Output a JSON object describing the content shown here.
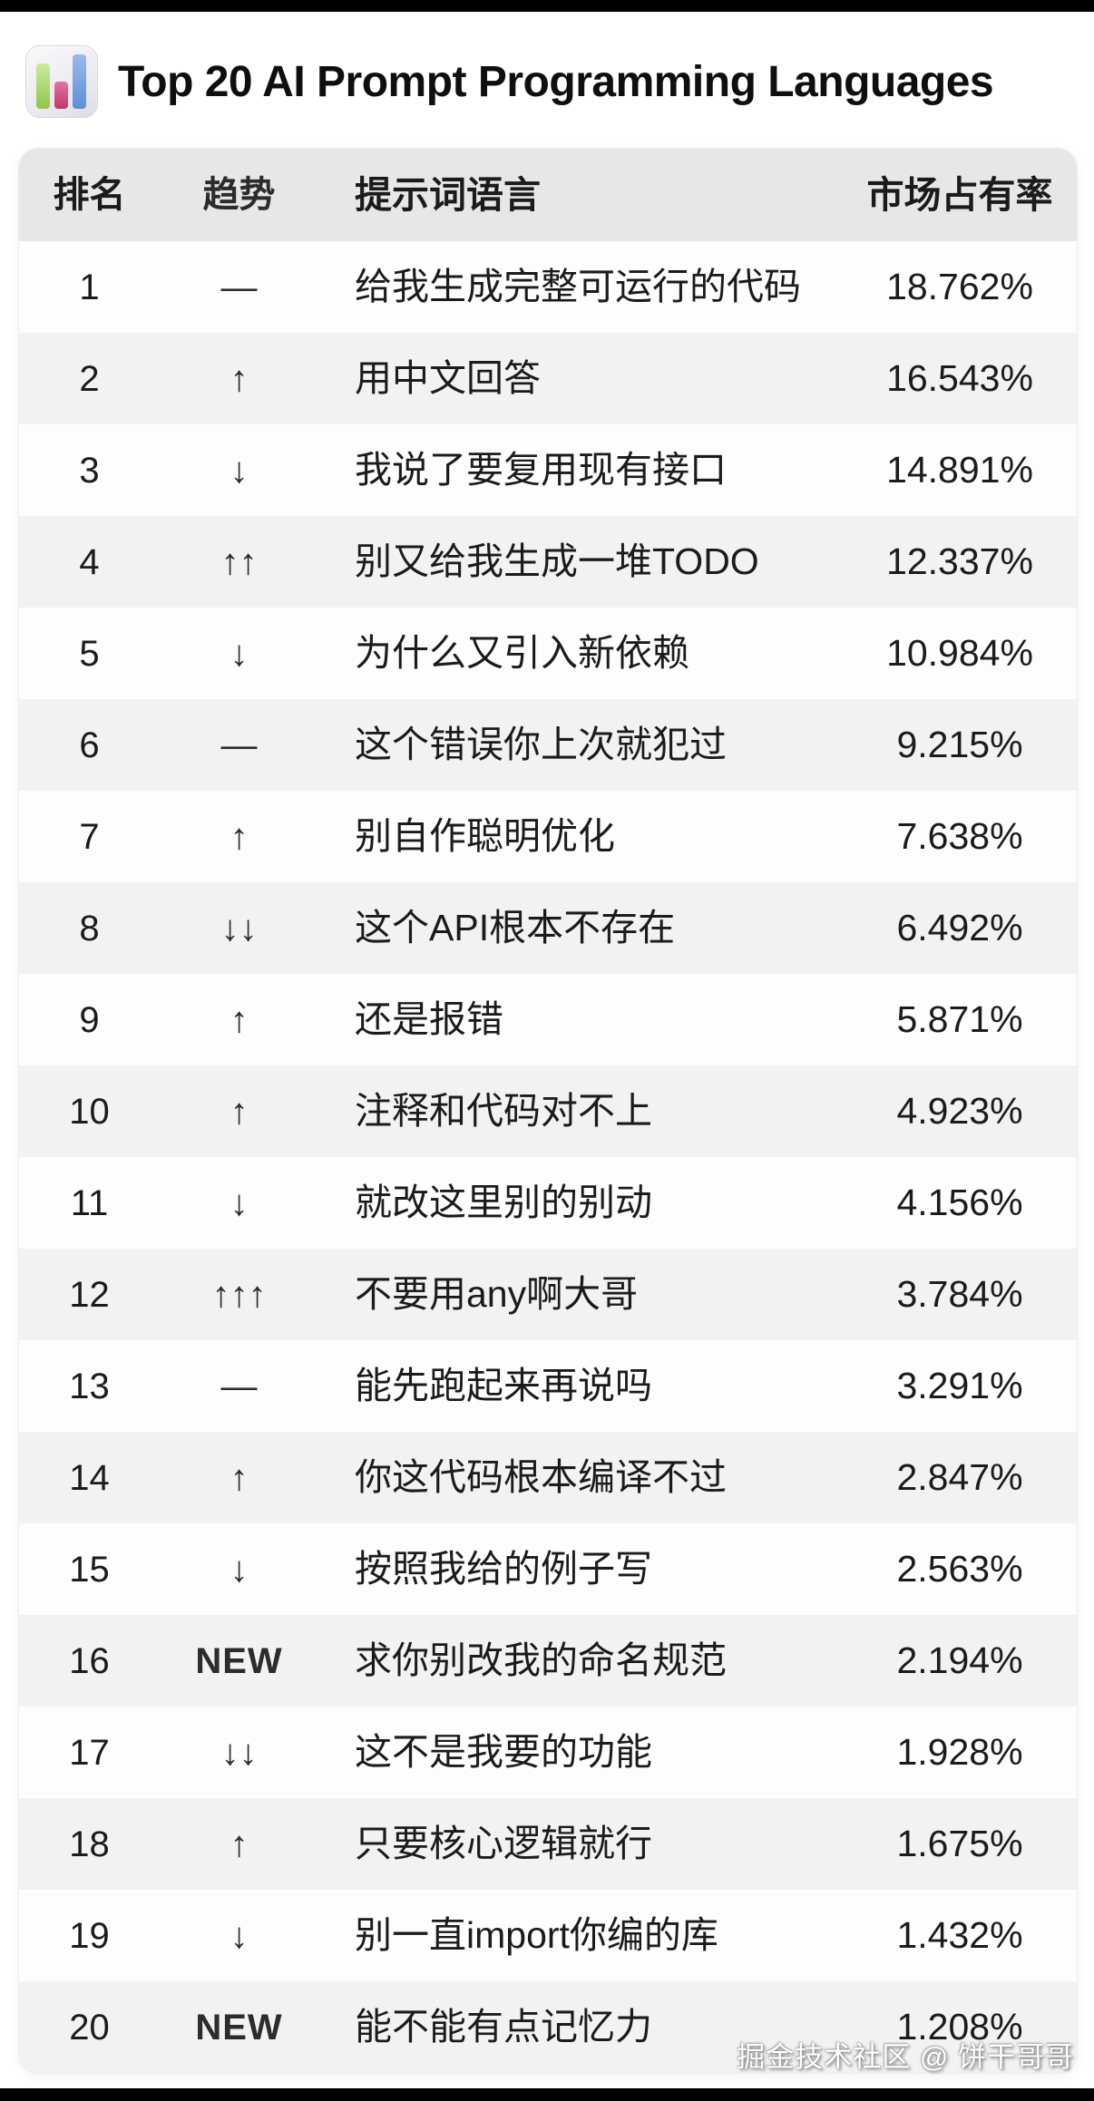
{
  "header": {
    "icon": "bar-chart-emoji",
    "title": "Top 20 AI Prompt Programming Languages"
  },
  "table": {
    "columns": [
      "排名",
      "趋势",
      "提示词语言",
      "市场占有率"
    ],
    "rows": [
      {
        "rank": "1",
        "trend": "—",
        "language": "给我生成完整可运行的代码",
        "share": "18.762%"
      },
      {
        "rank": "2",
        "trend": "↑",
        "language": "用中文回答",
        "share": "16.543%"
      },
      {
        "rank": "3",
        "trend": "↓",
        "language": "我说了要复用现有接口",
        "share": "14.891%"
      },
      {
        "rank": "4",
        "trend": "↑↑",
        "language": "别又给我生成一堆TODO",
        "share": "12.337%"
      },
      {
        "rank": "5",
        "trend": "↓",
        "language": "为什么又引入新依赖",
        "share": "10.984%"
      },
      {
        "rank": "6",
        "trend": "—",
        "language": "这个错误你上次就犯过",
        "share": "9.215%"
      },
      {
        "rank": "7",
        "trend": "↑",
        "language": "别自作聪明优化",
        "share": "7.638%"
      },
      {
        "rank": "8",
        "trend": "↓↓",
        "language": "这个API根本不存在",
        "share": "6.492%"
      },
      {
        "rank": "9",
        "trend": "↑",
        "language": "还是报错",
        "share": "5.871%"
      },
      {
        "rank": "10",
        "trend": "↑",
        "language": "注释和代码对不上",
        "share": "4.923%"
      },
      {
        "rank": "11",
        "trend": "↓",
        "language": "就改这里别的别动",
        "share": "4.156%"
      },
      {
        "rank": "12",
        "trend": "↑↑↑",
        "language": "不要用any啊大哥",
        "share": "3.784%"
      },
      {
        "rank": "13",
        "trend": "—",
        "language": "能先跑起来再说吗",
        "share": "3.291%"
      },
      {
        "rank": "14",
        "trend": "↑",
        "language": "你这代码根本编译不过",
        "share": "2.847%"
      },
      {
        "rank": "15",
        "trend": "↓",
        "language": "按照我给的例子写",
        "share": "2.563%"
      },
      {
        "rank": "16",
        "trend": "NEW",
        "language": "求你别改我的命名规范",
        "share": "2.194%"
      },
      {
        "rank": "17",
        "trend": "↓↓",
        "language": "这不是我要的功能",
        "share": "1.928%"
      },
      {
        "rank": "18",
        "trend": "↑",
        "language": "只要核心逻辑就行",
        "share": "1.675%"
      },
      {
        "rank": "19",
        "trend": "↓",
        "language": "别一直import你编的库",
        "share": "1.432%"
      },
      {
        "rank": "20",
        "trend": "NEW",
        "language": "能不能有点记忆力",
        "share": "1.208%"
      }
    ]
  },
  "watermark": "掘金技术社区 @ 饼干哥哥",
  "colors": {
    "header_bg": "#e7e7e8",
    "row_alt_bg": "#f2f2f3",
    "row_bg": "#fdfdfd",
    "text": "#1b1b1b",
    "frame_bars": "#000000",
    "icon_green": "#8fc74a",
    "icon_red": "#c2366e",
    "icon_blue": "#5e8fd8"
  },
  "chart_data": {
    "type": "table",
    "title": "Top 20 AI Prompt Programming Languages",
    "columns": [
      "排名",
      "趋势",
      "提示词语言",
      "市场占有率"
    ],
    "unit": "%",
    "rows": [
      [
        1,
        "—",
        "给我生成完整可运行的代码",
        18.762
      ],
      [
        2,
        "↑",
        "用中文回答",
        16.543
      ],
      [
        3,
        "↓",
        "我说了要复用现有接口",
        14.891
      ],
      [
        4,
        "↑↑",
        "别又给我生成一堆TODO",
        12.337
      ],
      [
        5,
        "↓",
        "为什么又引入新依赖",
        10.984
      ],
      [
        6,
        "—",
        "这个错误你上次就犯过",
        9.215
      ],
      [
        7,
        "↑",
        "别自作聪明优化",
        7.638
      ],
      [
        8,
        "↓↓",
        "这个API根本不存在",
        6.492
      ],
      [
        9,
        "↑",
        "还是报错",
        5.871
      ],
      [
        10,
        "↑",
        "注释和代码对不上",
        4.923
      ],
      [
        11,
        "↓",
        "就改这里别的别动",
        4.156
      ],
      [
        12,
        "↑↑↑",
        "不要用any啊大哥",
        3.784
      ],
      [
        13,
        "—",
        "能先跑起来再说吗",
        3.291
      ],
      [
        14,
        "↑",
        "你这代码根本编译不过",
        2.847
      ],
      [
        15,
        "↓",
        "按照我给的例子写",
        2.563
      ],
      [
        16,
        "NEW",
        "求你别改我的命名规范",
        2.194
      ],
      [
        17,
        "↓↓",
        "这不是我要的功能",
        1.928
      ],
      [
        18,
        "↑",
        "只要核心逻辑就行",
        1.675
      ],
      [
        19,
        "↓",
        "别一直import你编的库",
        1.432
      ],
      [
        20,
        "NEW",
        "能不能有点记忆力",
        1.208
      ]
    ]
  }
}
